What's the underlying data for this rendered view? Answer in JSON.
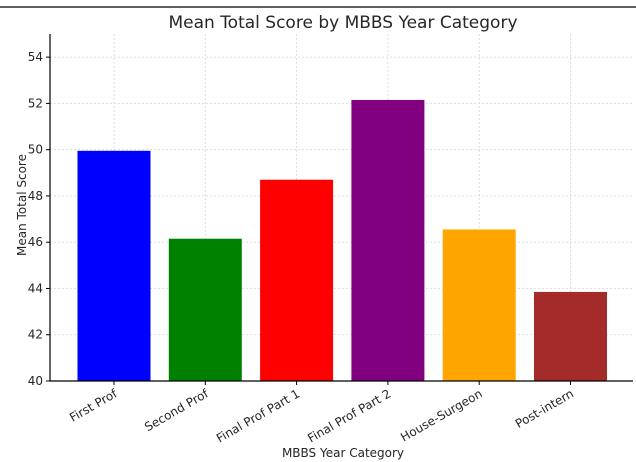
{
  "chart_data": {
    "type": "bar",
    "title": "Mean Total Score by MBBS Year Category",
    "xlabel": "MBBS Year Category",
    "ylabel": "Mean Total Score",
    "categories": [
      "First Prof",
      "Second Prof",
      "Final Prof Part 1",
      "Final Prof Part 2",
      "House-Surgeon",
      "Post-intern"
    ],
    "values": [
      49.95,
      46.15,
      48.7,
      52.15,
      46.55,
      43.85
    ],
    "colors": [
      "#0000ff",
      "#008000",
      "#ff0000",
      "#800080",
      "#ffa500",
      "#a52a2a"
    ],
    "ylim": [
      40,
      55
    ],
    "yticks": [
      40,
      42,
      44,
      46,
      48,
      50,
      52,
      54
    ],
    "grid": true
  }
}
